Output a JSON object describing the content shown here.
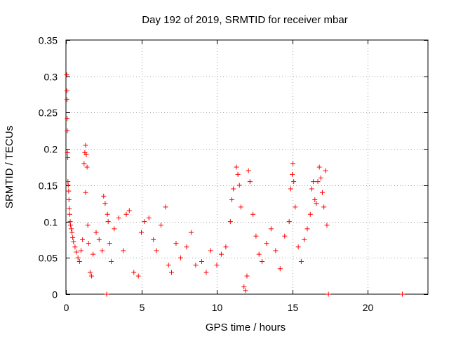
{
  "chart_data": {
    "type": "scatter",
    "title": "Day 192 of 2019, SRMTID for receiver mbar",
    "xlabel": "GPS time / hours",
    "ylabel": "SRMTID / TECUs",
    "xlim": [
      0,
      24
    ],
    "ylim": [
      0,
      0.35
    ],
    "xticks": [
      0,
      5,
      10,
      15,
      20
    ],
    "yticks": [
      0,
      0.05,
      0.1,
      0.15,
      0.2,
      0.25,
      0.3,
      0.35
    ],
    "ytick_labels": [
      "0",
      "0.05",
      "0.1",
      "0.15",
      "0.2",
      "0.25",
      "0.3",
      "0.35"
    ],
    "grid": true,
    "marker": "+",
    "color": "#ff0000",
    "series": [
      {
        "name": "SRMTID",
        "points": [
          [
            0.05,
            0.302
          ],
          [
            0.06,
            0.28
          ],
          [
            0.07,
            0.268
          ],
          [
            0.08,
            0.242
          ],
          [
            0.09,
            0.225
          ],
          [
            0.1,
            0.195
          ],
          [
            0.12,
            0.188
          ],
          [
            0.13,
            0.155
          ],
          [
            0.15,
            0.15
          ],
          [
            0.18,
            0.142
          ],
          [
            0.2,
            0.13
          ],
          [
            0.22,
            0.118
          ],
          [
            0.25,
            0.11
          ],
          [
            0.28,
            0.1
          ],
          [
            0.3,
            0.095
          ],
          [
            0.35,
            0.09
          ],
          [
            0.4,
            0.085
          ],
          [
            0.45,
            0.078
          ],
          [
            0.5,
            0.072
          ],
          [
            0.6,
            0.065
          ],
          [
            0.7,
            0.058
          ],
          [
            0.8,
            0.05
          ],
          [
            0.9,
            0.045
          ],
          [
            1.0,
            0.06
          ],
          [
            1.1,
            0.075
          ],
          [
            1.2,
            0.18
          ],
          [
            1.25,
            0.195
          ],
          [
            1.3,
            0.205
          ],
          [
            1.35,
            0.192
          ],
          [
            1.4,
            0.175
          ],
          [
            1.3,
            0.14
          ],
          [
            1.45,
            0.095
          ],
          [
            1.5,
            0.07
          ],
          [
            1.6,
            0.03
          ],
          [
            1.7,
            0.025
          ],
          [
            1.8,
            0.055
          ],
          [
            2.0,
            0.085
          ],
          [
            2.2,
            0.075
          ],
          [
            2.4,
            0.06
          ],
          [
            2.5,
            0.135
          ],
          [
            2.6,
            0.125
          ],
          [
            2.7,
            0.0
          ],
          [
            2.75,
            0.11
          ],
          [
            2.8,
            0.1
          ],
          [
            2.9,
            0.07
          ],
          [
            3.0,
            0.045
          ],
          [
            3.2,
            0.09
          ],
          [
            3.5,
            0.105
          ],
          [
            3.8,
            0.06
          ],
          [
            4.0,
            0.11
          ],
          [
            4.2,
            0.115
          ],
          [
            4.5,
            0.03
          ],
          [
            4.8,
            0.025
          ],
          [
            5.0,
            0.085
          ],
          [
            5.2,
            0.1
          ],
          [
            5.5,
            0.105
          ],
          [
            5.8,
            0.075
          ],
          [
            6.0,
            0.06
          ],
          [
            6.3,
            0.095
          ],
          [
            6.6,
            0.12
          ],
          [
            6.8,
            0.04
          ],
          [
            7.0,
            0.03
          ],
          [
            7.3,
            0.07
          ],
          [
            7.6,
            0.05
          ],
          [
            8.0,
            0.065
          ],
          [
            8.3,
            0.085
          ],
          [
            8.6,
            0.04
          ],
          [
            9.0,
            0.045
          ],
          [
            9.3,
            0.03
          ],
          [
            9.6,
            0.06
          ],
          [
            10.0,
            0.04
          ],
          [
            10.3,
            0.055
          ],
          [
            10.6,
            0.065
          ],
          [
            10.9,
            0.1
          ],
          [
            11.0,
            0.13
          ],
          [
            11.1,
            0.145
          ],
          [
            11.3,
            0.175
          ],
          [
            11.4,
            0.165
          ],
          [
            11.5,
            0.15
          ],
          [
            11.6,
            0.12
          ],
          [
            11.8,
            0.01
          ],
          [
            11.9,
            0.005
          ],
          [
            12.0,
            0.025
          ],
          [
            12.1,
            0.17
          ],
          [
            12.2,
            0.155
          ],
          [
            12.4,
            0.11
          ],
          [
            12.6,
            0.08
          ],
          [
            12.8,
            0.055
          ],
          [
            13.0,
            0.045
          ],
          [
            13.3,
            0.07
          ],
          [
            13.6,
            0.09
          ],
          [
            13.9,
            0.06
          ],
          [
            14.2,
            0.035
          ],
          [
            14.5,
            0.08
          ],
          [
            14.8,
            0.1
          ],
          [
            14.9,
            0.145
          ],
          [
            15.0,
            0.165
          ],
          [
            15.05,
            0.18
          ],
          [
            15.1,
            0.155
          ],
          [
            15.2,
            0.12
          ],
          [
            15.4,
            0.065
          ],
          [
            15.6,
            0.045
          ],
          [
            15.8,
            0.075
          ],
          [
            16.0,
            0.09
          ],
          [
            16.2,
            0.11
          ],
          [
            16.3,
            0.145
          ],
          [
            16.4,
            0.155
          ],
          [
            16.5,
            0.13
          ],
          [
            16.6,
            0.125
          ],
          [
            16.7,
            0.155
          ],
          [
            16.8,
            0.175
          ],
          [
            16.9,
            0.16
          ],
          [
            17.0,
            0.14
          ],
          [
            17.1,
            0.12
          ],
          [
            17.2,
            0.17
          ],
          [
            17.3,
            0.095
          ],
          [
            17.4,
            0.0
          ],
          [
            22.3,
            0.0
          ]
        ]
      }
    ]
  }
}
